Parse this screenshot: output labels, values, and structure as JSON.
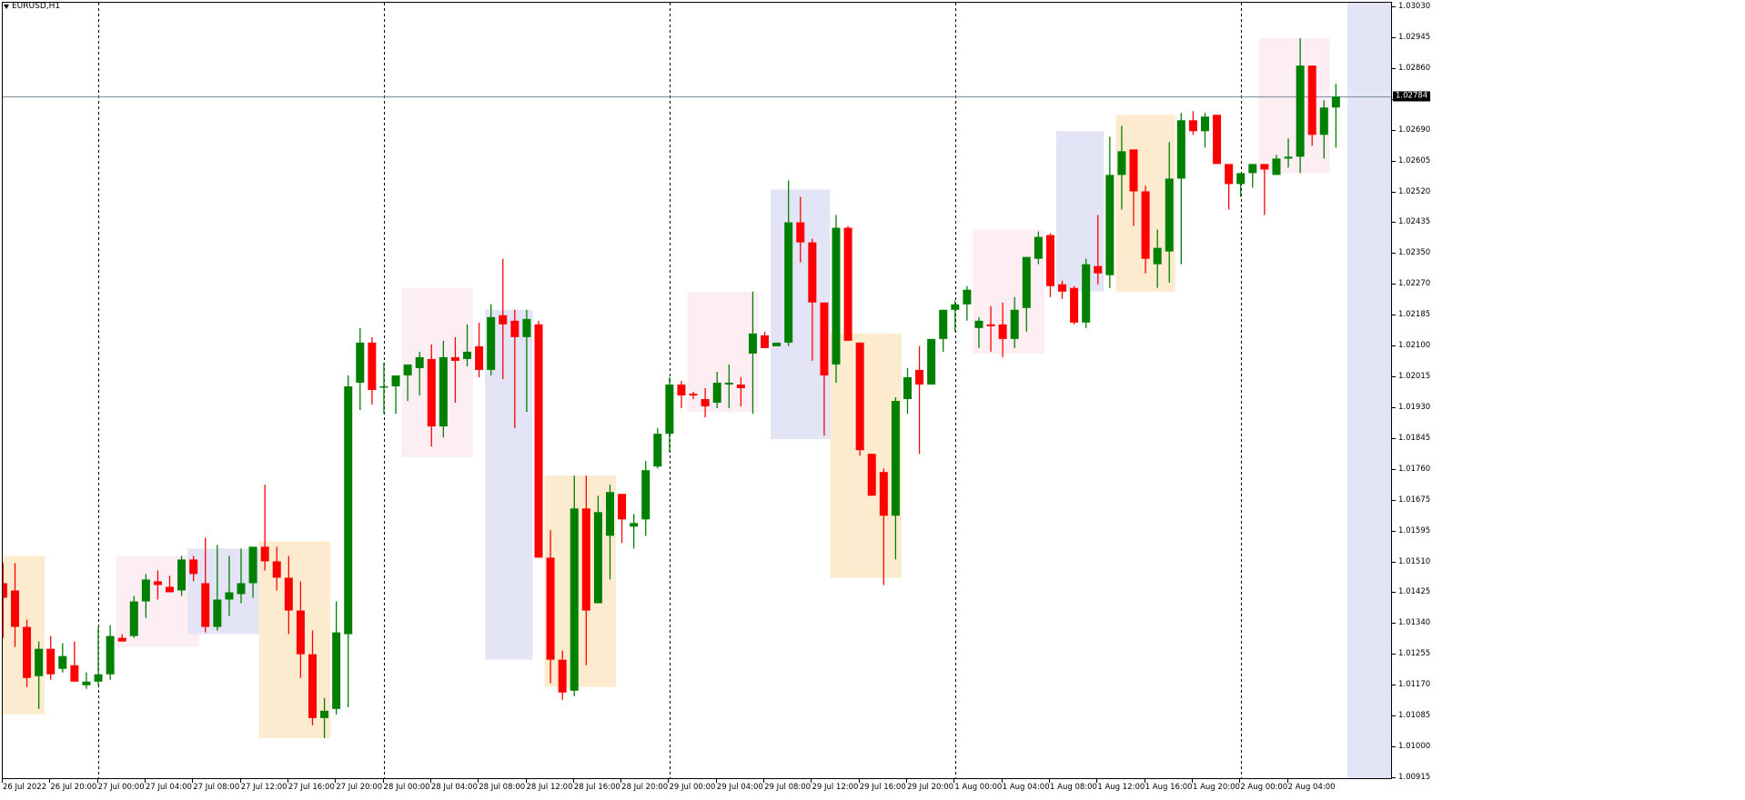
{
  "window": {
    "title": "EURUSD,H1",
    "menu_icon": "triangle-down-icon"
  },
  "colors": {
    "bull": "#008000",
    "bear": "#ff0000",
    "grid_period_sep": "#000000",
    "bid_line": "#778899",
    "zone_pink": "#fdeef3",
    "zone_blue": "#e4e4f7",
    "zone_orange": "#fdebd0",
    "future_shade": "#e4e4f7",
    "price_tag_bg": "#000000",
    "price_tag_fg": "#ffffff"
  },
  "current_price": {
    "label": "1.02784",
    "value": 1.02784
  },
  "chart_data": {
    "type": "candlestick",
    "title": "EURUSD,H1",
    "symbol": "EURUSD",
    "timeframe": "H1",
    "ylim": [
      1.00915,
      1.0303
    ],
    "y_ticks": [
      "1.03030",
      "1.02945",
      "1.02860",
      "1.02775",
      "1.02690",
      "1.02605",
      "1.02520",
      "1.02435",
      "1.02350",
      "1.02270",
      "1.02185",
      "1.02100",
      "1.02015",
      "1.01930",
      "1.01845",
      "1.01760",
      "1.01675",
      "1.01595",
      "1.01510",
      "1.01425",
      "1.01340",
      "1.01255",
      "1.01170",
      "1.01085",
      "1.01000",
      "1.00915"
    ],
    "x_ticks": [
      "26 Jul 2022",
      "26 Jul 20:00",
      "27 Jul 00:00",
      "27 Jul 04:00",
      "27 Jul 08:00",
      "27 Jul 12:00",
      "27 Jul 16:00",
      "27 Jul 20:00",
      "28 Jul 00:00",
      "28 Jul 04:00",
      "28 Jul 08:00",
      "28 Jul 12:00",
      "28 Jul 16:00",
      "28 Jul 20:00",
      "29 Jul 00:00",
      "29 Jul 04:00",
      "29 Jul 08:00",
      "29 Jul 12:00",
      "29 Jul 16:00",
      "29 Jul 20:00",
      "1 Aug 00:00",
      "1 Aug 04:00",
      "1 Aug 08:00",
      "1 Aug 12:00",
      "1 Aug 16:00",
      "1 Aug 20:00",
      "2 Aug 00:00",
      "2 Aug 04:00"
    ],
    "period_separators": [
      "27 Jul 00:00",
      "28 Jul 00:00",
      "29 Jul 00:00",
      "1 Aug 00:00",
      "2 Aug 00:00"
    ],
    "grid": false,
    "candles": [
      {
        "o": 1.0145,
        "h": 1.01505,
        "l": 1.013,
        "c": 1.0141
      },
      {
        "o": 1.0143,
        "h": 1.01505,
        "l": 1.01275,
        "c": 1.0133
      },
      {
        "o": 1.0133,
        "h": 1.0135,
        "l": 1.01165,
        "c": 1.0119
      },
      {
        "o": 1.01195,
        "h": 1.0129,
        "l": 1.01105,
        "c": 1.0127
      },
      {
        "o": 1.0127,
        "h": 1.01305,
        "l": 1.01185,
        "c": 1.012
      },
      {
        "o": 1.01215,
        "h": 1.01285,
        "l": 1.01205,
        "c": 1.0125
      },
      {
        "o": 1.01225,
        "h": 1.0129,
        "l": 1.0118,
        "c": 1.0118
      },
      {
        "o": 1.0117,
        "h": 1.01205,
        "l": 1.0116,
        "c": 1.0118
      },
      {
        "o": 1.0118,
        "h": 1.0133,
        "l": 1.0117,
        "c": 1.012
      },
      {
        "o": 1.012,
        "h": 1.01335,
        "l": 1.01185,
        "c": 1.01305
      },
      {
        "o": 1.013,
        "h": 1.0131,
        "l": 1.0129,
        "c": 1.0129
      },
      {
        "o": 1.01305,
        "h": 1.01415,
        "l": 1.013,
        "c": 1.014
      },
      {
        "o": 1.014,
        "h": 1.01475,
        "l": 1.01355,
        "c": 1.0146
      },
      {
        "o": 1.01455,
        "h": 1.01485,
        "l": 1.01405,
        "c": 1.01445
      },
      {
        "o": 1.0144,
        "h": 1.0147,
        "l": 1.01425,
        "c": 1.01425
      },
      {
        "o": 1.0143,
        "h": 1.01525,
        "l": 1.01415,
        "c": 1.01515
      },
      {
        "o": 1.01515,
        "h": 1.01525,
        "l": 1.01455,
        "c": 1.01475
      },
      {
        "o": 1.0145,
        "h": 1.01575,
        "l": 1.01315,
        "c": 1.0133
      },
      {
        "o": 1.0133,
        "h": 1.01555,
        "l": 1.0132,
        "c": 1.01405
      },
      {
        "o": 1.01405,
        "h": 1.01525,
        "l": 1.0136,
        "c": 1.01425
      },
      {
        "o": 1.0142,
        "h": 1.01545,
        "l": 1.01395,
        "c": 1.0145
      },
      {
        "o": 1.0145,
        "h": 1.01545,
        "l": 1.0141,
        "c": 1.0155
      },
      {
        "o": 1.0155,
        "h": 1.0172,
        "l": 1.01485,
        "c": 1.0151
      },
      {
        "o": 1.0151,
        "h": 1.0155,
        "l": 1.0143,
        "c": 1.01465
      },
      {
        "o": 1.01465,
        "h": 1.01525,
        "l": 1.0131,
        "c": 1.01375
      },
      {
        "o": 1.01375,
        "h": 1.01455,
        "l": 1.0119,
        "c": 1.01255
      },
      {
        "o": 1.01255,
        "h": 1.0132,
        "l": 1.0106,
        "c": 1.0108
      },
      {
        "o": 1.0108,
        "h": 1.01135,
        "l": 1.01025,
        "c": 1.011
      },
      {
        "o": 1.01105,
        "h": 1.014,
        "l": 1.0109,
        "c": 1.01315
      },
      {
        "o": 1.0131,
        "h": 1.0202,
        "l": 1.0111,
        "c": 1.0199
      },
      {
        "o": 1.02,
        "h": 1.0215,
        "l": 1.01925,
        "c": 1.0211
      },
      {
        "o": 1.0211,
        "h": 1.02125,
        "l": 1.0194,
        "c": 1.0198
      },
      {
        "o": 1.0199,
        "h": 1.02055,
        "l": 1.01915,
        "c": 1.0199
      },
      {
        "o": 1.0199,
        "h": 1.0201,
        "l": 1.01915,
        "c": 1.0202
      },
      {
        "o": 1.0202,
        "h": 1.0204,
        "l": 1.0195,
        "c": 1.0205
      },
      {
        "o": 1.0204,
        "h": 1.02085,
        "l": 1.01965,
        "c": 1.0207
      },
      {
        "o": 1.02065,
        "h": 1.02105,
        "l": 1.01825,
        "c": 1.0188
      },
      {
        "o": 1.0188,
        "h": 1.02115,
        "l": 1.0185,
        "c": 1.0207
      },
      {
        "o": 1.0207,
        "h": 1.02125,
        "l": 1.01945,
        "c": 1.0206
      },
      {
        "o": 1.02065,
        "h": 1.0216,
        "l": 1.02045,
        "c": 1.02085
      },
      {
        "o": 1.021,
        "h": 1.02165,
        "l": 1.02015,
        "c": 1.02035
      },
      {
        "o": 1.02035,
        "h": 1.02215,
        "l": 1.0202,
        "c": 1.0218
      },
      {
        "o": 1.02185,
        "h": 1.0234,
        "l": 1.0201,
        "c": 1.0216
      },
      {
        "o": 1.0217,
        "h": 1.022,
        "l": 1.01875,
        "c": 1.02125
      },
      {
        "o": 1.02125,
        "h": 1.022,
        "l": 1.0192,
        "c": 1.02175
      },
      {
        "o": 1.0216,
        "h": 1.0217,
        "l": 1.01525,
        "c": 1.0152
      },
      {
        "o": 1.0152,
        "h": 1.01595,
        "l": 1.01175,
        "c": 1.0124
      },
      {
        "o": 1.0124,
        "h": 1.01265,
        "l": 1.0113,
        "c": 1.0115
      },
      {
        "o": 1.01155,
        "h": 1.01745,
        "l": 1.0114,
        "c": 1.01655
      },
      {
        "o": 1.01655,
        "h": 1.01745,
        "l": 1.01225,
        "c": 1.01375
      },
      {
        "o": 1.01395,
        "h": 1.0169,
        "l": 1.01395,
        "c": 1.01645
      },
      {
        "o": 1.0158,
        "h": 1.0172,
        "l": 1.0146,
        "c": 1.017
      },
      {
        "o": 1.01695,
        "h": 1.01695,
        "l": 1.0156,
        "c": 1.01625
      },
      {
        "o": 1.01605,
        "h": 1.0164,
        "l": 1.01545,
        "c": 1.01615
      },
      {
        "o": 1.01625,
        "h": 1.01785,
        "l": 1.0158,
        "c": 1.0176
      },
      {
        "o": 1.0177,
        "h": 1.01875,
        "l": 1.01765,
        "c": 1.0186
      },
      {
        "o": 1.0186,
        "h": 1.02015,
        "l": 1.0181,
        "c": 1.01995
      },
      {
        "o": 1.01995,
        "h": 1.02005,
        "l": 1.0193,
        "c": 1.01965
      },
      {
        "o": 1.0197,
        "h": 1.01975,
        "l": 1.01955,
        "c": 1.01965
      },
      {
        "o": 1.01955,
        "h": 1.01985,
        "l": 1.01905,
        "c": 1.01935
      },
      {
        "o": 1.01945,
        "h": 1.0203,
        "l": 1.0193,
        "c": 1.02
      },
      {
        "o": 1.01995,
        "h": 1.0205,
        "l": 1.0193,
        "c": 1.02
      },
      {
        "o": 1.01995,
        "h": 1.02015,
        "l": 1.01935,
        "c": 1.01985
      },
      {
        "o": 1.0208,
        "h": 1.0225,
        "l": 1.01915,
        "c": 1.02135
      },
      {
        "o": 1.0213,
        "h": 1.0214,
        "l": 1.02095,
        "c": 1.02095
      },
      {
        "o": 1.021,
        "h": 1.02105,
        "l": 1.021,
        "c": 1.0211
      },
      {
        "o": 1.0211,
        "h": 1.02555,
        "l": 1.021,
        "c": 1.0244
      },
      {
        "o": 1.0244,
        "h": 1.0251,
        "l": 1.0233,
        "c": 1.02385
      },
      {
        "o": 1.02385,
        "h": 1.02395,
        "l": 1.0206,
        "c": 1.0222
      },
      {
        "o": 1.0222,
        "h": 1.02185,
        "l": 1.01855,
        "c": 1.0202
      },
      {
        "o": 1.0205,
        "h": 1.0246,
        "l": 1.02,
        "c": 1.02425
      },
      {
        "o": 1.02425,
        "h": 1.0243,
        "l": 1.02125,
        "c": 1.02115
      },
      {
        "o": 1.0211,
        "h": 1.0211,
        "l": 1.018,
        "c": 1.01815
      },
      {
        "o": 1.01805,
        "h": 1.01805,
        "l": 1.0177,
        "c": 1.0169
      },
      {
        "o": 1.01755,
        "h": 1.01765,
        "l": 1.01445,
        "c": 1.01635
      },
      {
        "o": 1.01635,
        "h": 1.0196,
        "l": 1.01515,
        "c": 1.0195
      },
      {
        "o": 1.01955,
        "h": 1.0204,
        "l": 1.01915,
        "c": 1.02015
      },
      {
        "o": 1.02035,
        "h": 1.021,
        "l": 1.01805,
        "c": 1.01995
      },
      {
        "o": 1.01995,
        "h": 1.0211,
        "l": 1.01995,
        "c": 1.0212
      },
      {
        "o": 1.0212,
        "h": 1.02195,
        "l": 1.02085,
        "c": 1.022
      },
      {
        "o": 1.022,
        "h": 1.02225,
        "l": 1.0214,
        "c": 1.02215
      },
      {
        "o": 1.02215,
        "h": 1.02265,
        "l": 1.0217,
        "c": 1.02255
      },
      {
        "o": 1.0215,
        "h": 1.0218,
        "l": 1.02095,
        "c": 1.0217
      },
      {
        "o": 1.0216,
        "h": 1.0221,
        "l": 1.02085,
        "c": 1.02155
      },
      {
        "o": 1.0216,
        "h": 1.0222,
        "l": 1.0207,
        "c": 1.0212
      },
      {
        "o": 1.0212,
        "h": 1.02235,
        "l": 1.02095,
        "c": 1.022
      },
      {
        "o": 1.02205,
        "h": 1.0234,
        "l": 1.0214,
        "c": 1.02345
      },
      {
        "o": 1.0234,
        "h": 1.02415,
        "l": 1.02325,
        "c": 1.024
      },
      {
        "o": 1.02405,
        "h": 1.0241,
        "l": 1.02235,
        "c": 1.02265
      },
      {
        "o": 1.0227,
        "h": 1.0228,
        "l": 1.0223,
        "c": 1.0225
      },
      {
        "o": 1.0226,
        "h": 1.02265,
        "l": 1.0216,
        "c": 1.02165
      },
      {
        "o": 1.02165,
        "h": 1.0234,
        "l": 1.0215,
        "c": 1.02325
      },
      {
        "o": 1.0232,
        "h": 1.0246,
        "l": 1.0227,
        "c": 1.023
      },
      {
        "o": 1.02295,
        "h": 1.02675,
        "l": 1.0226,
        "c": 1.0257
      },
      {
        "o": 1.0257,
        "h": 1.02705,
        "l": 1.02475,
        "c": 1.02635
      },
      {
        "o": 1.0264,
        "h": 1.0264,
        "l": 1.0243,
        "c": 1.02525
      },
      {
        "o": 1.02525,
        "h": 1.0254,
        "l": 1.023,
        "c": 1.0234
      },
      {
        "o": 1.02325,
        "h": 1.0242,
        "l": 1.0226,
        "c": 1.0237
      },
      {
        "o": 1.0236,
        "h": 1.0266,
        "l": 1.02275,
        "c": 1.0256
      },
      {
        "o": 1.0256,
        "h": 1.0274,
        "l": 1.02325,
        "c": 1.0272
      },
      {
        "o": 1.0272,
        "h": 1.02745,
        "l": 1.0268,
        "c": 1.0269
      },
      {
        "o": 1.0269,
        "h": 1.0274,
        "l": 1.02645,
        "c": 1.0273
      },
      {
        "o": 1.02735,
        "h": 1.02735,
        "l": 1.026,
        "c": 1.026
      },
      {
        "o": 1.026,
        "h": 1.026,
        "l": 1.02475,
        "c": 1.02545
      },
      {
        "o": 1.02545,
        "h": 1.0257,
        "l": 1.0251,
        "c": 1.02575
      },
      {
        "o": 1.02575,
        "h": 1.026,
        "l": 1.02535,
        "c": 1.026
      },
      {
        "o": 1.026,
        "h": 1.026,
        "l": 1.0246,
        "c": 1.02585
      },
      {
        "o": 1.0257,
        "h": 1.02625,
        "l": 1.02585,
        "c": 1.02615
      },
      {
        "o": 1.02615,
        "h": 1.0267,
        "l": 1.0259,
        "c": 1.0262
      },
      {
        "o": 1.0262,
        "h": 1.02945,
        "l": 1.02575,
        "c": 1.0287
      },
      {
        "o": 1.0287,
        "h": 1.0287,
        "l": 1.0265,
        "c": 1.0268
      },
      {
        "o": 1.0268,
        "h": 1.02775,
        "l": 1.02615,
        "c": 1.02755
      },
      {
        "o": 1.02755,
        "h": 1.0282,
        "l": 1.02645,
        "c": 1.02785
      }
    ],
    "zones": [
      {
        "color": "orange",
        "from": 0,
        "to": 3,
        "top": 1.01525,
        "bottom": 1.0109
      },
      {
        "color": "pink",
        "from": 10,
        "to": 16,
        "top": 1.01525,
        "bottom": 1.01275
      },
      {
        "color": "blue",
        "from": 16,
        "to": 21,
        "top": 1.01545,
        "bottom": 1.0131
      },
      {
        "color": "orange",
        "from": 22,
        "to": 27,
        "top": 1.01565,
        "bottom": 1.01025
      },
      {
        "color": "pink",
        "from": 34,
        "to": 39,
        "top": 1.0226,
        "bottom": 1.01795
      },
      {
        "color": "blue",
        "from": 41,
        "to": 44,
        "top": 1.022,
        "bottom": 1.0124
      },
      {
        "color": "orange",
        "from": 46,
        "to": 51,
        "top": 1.01745,
        "bottom": 1.01165
      },
      {
        "color": "pink",
        "from": 58,
        "to": 63,
        "top": 1.0225,
        "bottom": 1.0192
      },
      {
        "color": "blue",
        "from": 65,
        "to": 69,
        "top": 1.0253,
        "bottom": 1.01845
      },
      {
        "color": "orange",
        "from": 70,
        "to": 75,
        "top": 1.02135,
        "bottom": 1.01465
      },
      {
        "color": "pink",
        "from": 82,
        "to": 87,
        "top": 1.0242,
        "bottom": 1.0208
      },
      {
        "color": "blue",
        "from": 89,
        "to": 92,
        "top": 1.0269,
        "bottom": 1.0225
      },
      {
        "color": "orange",
        "from": 94,
        "to": 98,
        "top": 1.02735,
        "bottom": 1.0225
      },
      {
        "color": "pink",
        "from": 106,
        "to": 111,
        "top": 1.02945,
        "bottom": 1.02575
      }
    ]
  }
}
